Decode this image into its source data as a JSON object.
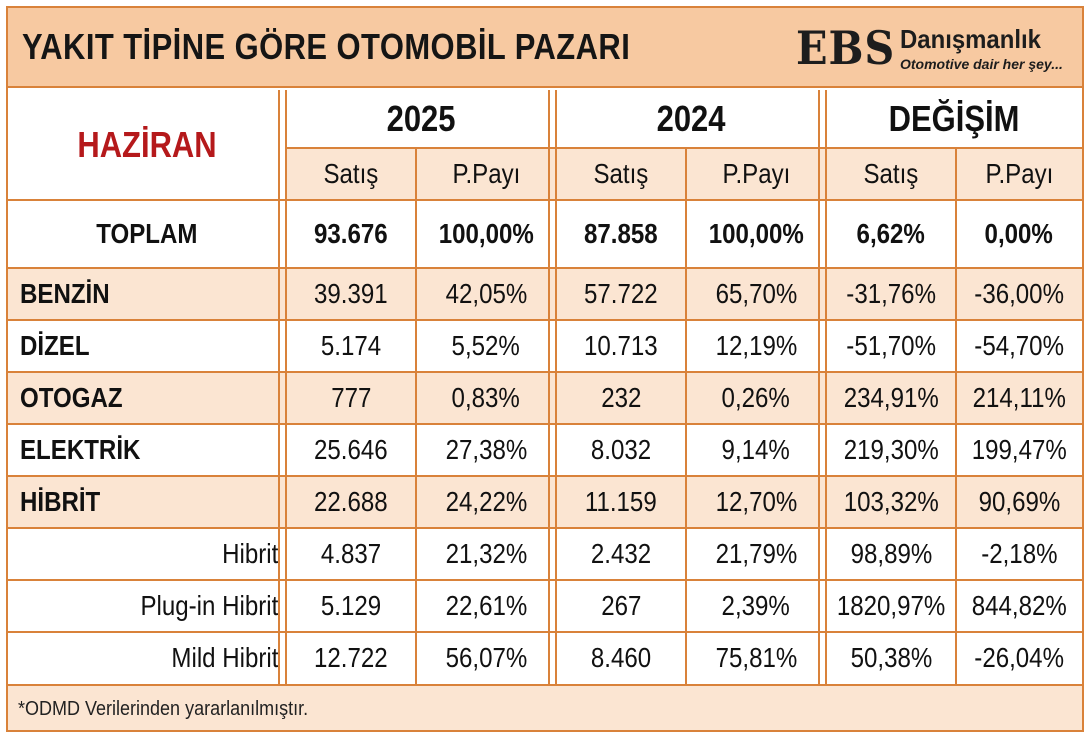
{
  "header": {
    "title": "YAKIT TİPİNE GÖRE OTOMOBİL PAZARI",
    "logo": {
      "mark": "EBS",
      "name": "Danışmanlık",
      "tagline": "Otomotive dair her şey..."
    }
  },
  "table": {
    "period": "HAZİRAN",
    "groups": [
      "2025",
      "2024",
      "DEĞİŞİM"
    ],
    "subheaders": [
      "Satış",
      "P.Payı",
      "Satış",
      "P.Payı",
      "Satış",
      "P.Payı"
    ],
    "total": {
      "label": "TOPLAM",
      "values": [
        "93.676",
        "100,00%",
        "87.858",
        "100,00%",
        "6,62%",
        "0,00%"
      ]
    },
    "rows": [
      {
        "label": "BENZİN",
        "values": [
          "39.391",
          "42,05%",
          "57.722",
          "65,70%",
          "-31,76%",
          "-36,00%"
        ]
      },
      {
        "label": "DİZEL",
        "values": [
          "5.174",
          "5,52%",
          "10.713",
          "12,19%",
          "-51,70%",
          "-54,70%"
        ]
      },
      {
        "label": "OTOGAZ",
        "values": [
          "777",
          "0,83%",
          "232",
          "0,26%",
          "234,91%",
          "214,11%"
        ]
      },
      {
        "label": "ELEKTRİK",
        "values": [
          "25.646",
          "27,38%",
          "8.032",
          "9,14%",
          "219,30%",
          "199,47%"
        ]
      },
      {
        "label": "HİBRİT",
        "values": [
          "22.688",
          "24,22%",
          "11.159",
          "12,70%",
          "103,32%",
          "90,69%"
        ]
      },
      {
        "label": "Hibrit",
        "values": [
          "4.837",
          "21,32%",
          "2.432",
          "21,79%",
          "98,89%",
          "-2,18%"
        ]
      },
      {
        "label": "Plug-in Hibrit",
        "values": [
          "5.129",
          "22,61%",
          "267",
          "2,39%",
          "1820,97%",
          "844,82%"
        ]
      },
      {
        "label": "Mild Hibrit",
        "values": [
          "12.722",
          "56,07%",
          "8.460",
          "75,81%",
          "50,38%",
          "-26,04%"
        ]
      }
    ]
  },
  "footer": {
    "note": "*ODMD Verilerinden yararlanılmıştır."
  },
  "colors": {
    "border": "#d9823a",
    "header_bg": "#f7c9a1",
    "row_alt_bg": "#fbe5d2",
    "period_red": "#b5191b"
  }
}
